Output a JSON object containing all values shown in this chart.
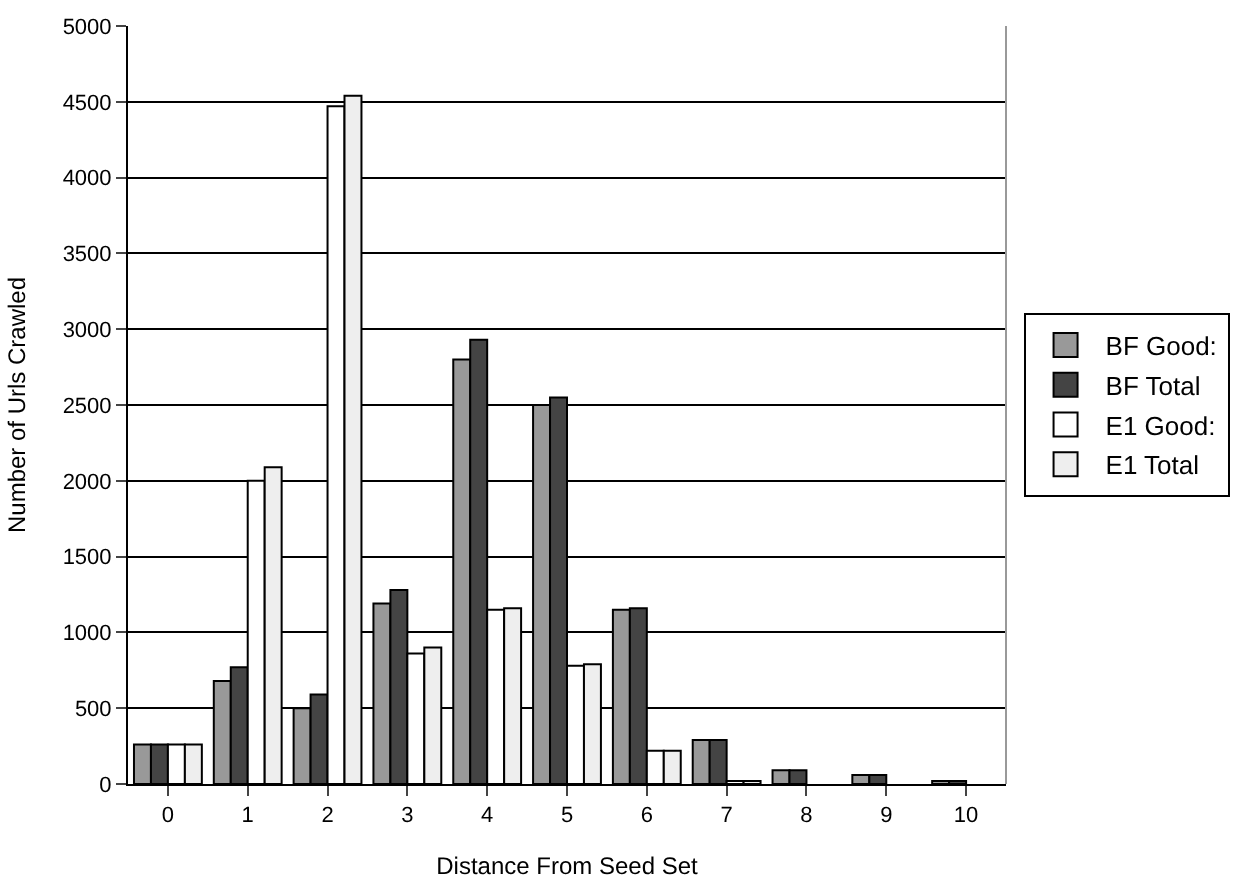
{
  "chart_data": {
    "type": "bar",
    "xlabel": "Distance From Seed Set",
    "ylabel": "Number of Urls Crawled",
    "categories": [
      "0",
      "1",
      "2",
      "3",
      "4",
      "5",
      "6",
      "7",
      "8",
      "9",
      "10"
    ],
    "series": [
      {
        "name": "BF Good:",
        "color": "#999999",
        "values": [
          260,
          680,
          500,
          1190,
          2800,
          2500,
          1150,
          290,
          90,
          60,
          20
        ]
      },
      {
        "name": "BF Total",
        "color": "#444444",
        "values": [
          260,
          770,
          590,
          1280,
          2930,
          2550,
          1160,
          290,
          90,
          60,
          20
        ]
      },
      {
        "name": "E1 Good:",
        "color": "#ffffff",
        "values": [
          260,
          2000,
          4470,
          860,
          1150,
          780,
          220,
          20,
          null,
          null,
          null
        ]
      },
      {
        "name": "E1 Total",
        "color": "#eeeeee",
        "values": [
          260,
          2090,
          4540,
          900,
          1160,
          790,
          220,
          20,
          null,
          null,
          null
        ]
      }
    ],
    "ylim": [
      0,
      5000
    ],
    "yticks": [
      0,
      500,
      1000,
      1500,
      2000,
      2500,
      3000,
      3500,
      4000,
      4500,
      5000
    ],
    "grid": "y",
    "legend": "right"
  }
}
